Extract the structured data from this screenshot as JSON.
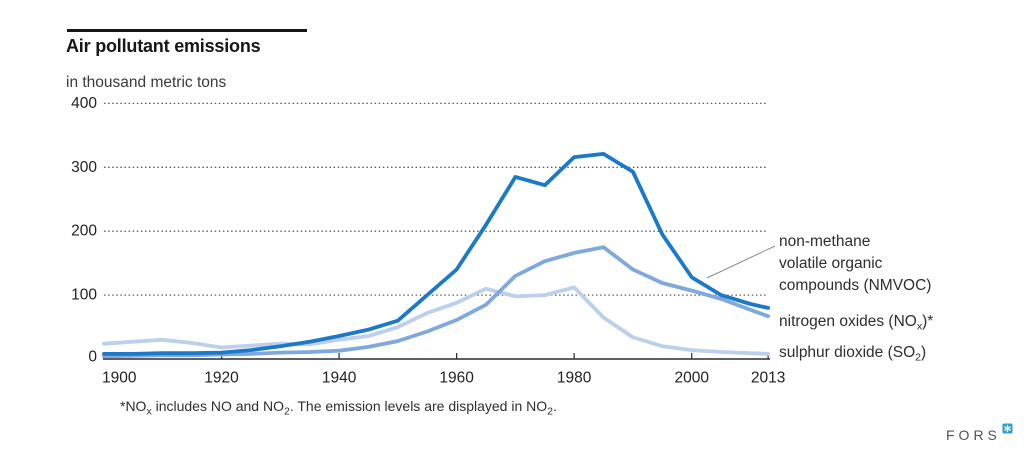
{
  "header": {
    "title": "Air pollutant emissions",
    "subtitle": "in thousand metric tons"
  },
  "chart_data": {
    "type": "line",
    "title": "Air pollutant emissions",
    "ylabel": "in thousand metric tons",
    "xlabel": "",
    "xlim": [
      1900,
      2013
    ],
    "ylim": [
      0,
      400
    ],
    "grid": "horizontal-dotted",
    "legend_position": "right",
    "x_ticks": [
      1900,
      1920,
      1940,
      1960,
      1980,
      2000,
      2013
    ],
    "y_ticks": [
      0,
      100,
      200,
      300,
      400
    ],
    "years": [
      1900,
      1905,
      1910,
      1915,
      1920,
      1925,
      1930,
      1935,
      1940,
      1945,
      1950,
      1955,
      1960,
      1965,
      1970,
      1975,
      1980,
      1985,
      1990,
      1995,
      2000,
      2005,
      2010,
      2013
    ],
    "series": [
      {
        "id": "so2",
        "name": "sulphur dioxide (SO2)",
        "color": "#bccfeb",
        "values": [
          24,
          27,
          30,
          25,
          18,
          21,
          24,
          23,
          30,
          36,
          50,
          72,
          88,
          110,
          98,
          100,
          112,
          65,
          34,
          20,
          14,
          11,
          9,
          8
        ]
      },
      {
        "id": "nox",
        "name": "nitrogen oxides (NOx)*",
        "color": "#7fa8db",
        "values": [
          4,
          5,
          6,
          6,
          7,
          8,
          10,
          11,
          13,
          19,
          28,
          43,
          61,
          85,
          130,
          153,
          166,
          175,
          140,
          119,
          107,
          94,
          77,
          67
        ]
      },
      {
        "id": "nmvoc",
        "name": "non-methane volatile organic compounds (NMVOC)",
        "color": "#1b79c6",
        "values": [
          8,
          8,
          9,
          9,
          10,
          14,
          20,
          27,
          36,
          46,
          60,
          100,
          140,
          210,
          285,
          272,
          316,
          321,
          293,
          195,
          128,
          100,
          86,
          80
        ]
      }
    ],
    "colors": {
      "grid": "#5c5c5c",
      "axis": "#2b2b2b",
      "leader": "#8a8a8a"
    }
  },
  "legend": {
    "nmvoc_lines": [
      "non-methane",
      "volatile organic",
      "compounds (NMVOC)"
    ],
    "nox_segments": [
      {
        "t": "nitrogen oxides (NO"
      },
      {
        "s": "x"
      },
      {
        "t": ")*"
      }
    ],
    "so2_segments": [
      {
        "t": "sulphur dioxide (SO"
      },
      {
        "s": "2"
      },
      {
        "t": ")"
      }
    ]
  },
  "footnote": {
    "segments": [
      {
        "t": "*NO"
      },
      {
        "s": "x"
      },
      {
        "t": " includes NO and NO"
      },
      {
        "s": "2"
      },
      {
        "t": ". The emission levels are displayed in NO"
      },
      {
        "s": "2"
      },
      {
        "t": "."
      }
    ]
  },
  "logo": {
    "text": "FORS"
  }
}
